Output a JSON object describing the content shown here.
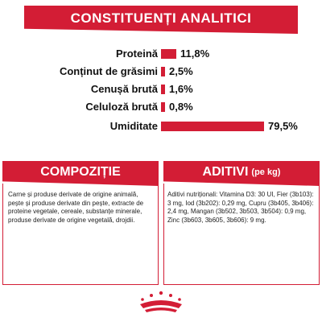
{
  "analytics": {
    "title": "CONSTITUENȚI ANALITICI",
    "rows": [
      {
        "label": "Proteină",
        "value": "11,8%",
        "pct": 11.8
      },
      {
        "label": "Conținut de grăsimi",
        "value": "2,5%",
        "pct": 2.5
      },
      {
        "label": "Cenușă brută",
        "value": "1,6%",
        "pct": 1.6
      },
      {
        "label": "Celuloză brută",
        "value": "0,8%",
        "pct": 0.8
      },
      {
        "label": "Umiditate",
        "value": "79,5%",
        "pct": 79.5
      }
    ]
  },
  "composition": {
    "title": "COMPOZIȚIE",
    "text": "Carne și produse derivate de origine animală, pește și produse derivate din pește, extracte de proteine vegetale, cereale, substanțe minerale, produse derivate de origine vegetală, drojdii."
  },
  "additives": {
    "title": "ADITIVI",
    "subtitle": "(pe kg)",
    "text": "Aditivi nutriționali: Vitamina D3: 30 UI, Fier (3b103): 3 mg, Iod (3b202): 0,29 mg, Cupru (3b405, 3b406): 2,4 mg, Mangan (3b502, 3b503, 3b504): 0,9 mg, Zinc (3b603, 3b605, 3b606): 9 mg."
  },
  "colors": {
    "accent": "#d31d35"
  },
  "logo": {
    "text": "ROYAL CANIN",
    "icon": "crown-icon"
  }
}
